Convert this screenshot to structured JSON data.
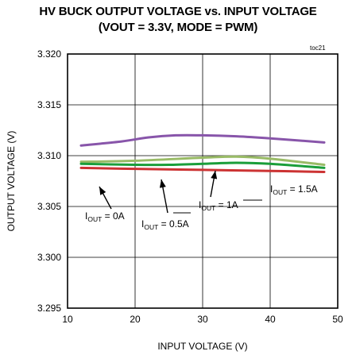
{
  "chart_data": {
    "type": "line",
    "title_line1": "HV BUCK OUTPUT VOLTAGE vs. INPUT VOLTAGE",
    "title_line2": "(VOUT = 3.3V, MODE = PWM)",
    "tag": "toc21",
    "xlabel": "INPUT VOLTAGE (V)",
    "ylabel": "OUTPUT  VOLTAGE (V)",
    "xlim": [
      10,
      50
    ],
    "ylim": [
      3.295,
      3.32
    ],
    "x_ticks": [
      10,
      20,
      30,
      40,
      50
    ],
    "y_ticks": [
      "3.295",
      "3.300",
      "3.305",
      "3.310",
      "3.315",
      "3.320"
    ],
    "grid": true,
    "series": [
      {
        "name": "IOUT = 0A",
        "color": "#cc3333",
        "x": [
          12,
          20,
          30,
          40,
          48
        ],
        "y": [
          3.3088,
          3.3087,
          3.3086,
          3.3085,
          3.3084
        ]
      },
      {
        "name": "IOUT = 0.5A",
        "color": "#99bb66",
        "x": [
          12,
          20,
          30,
          35,
          40,
          48
        ],
        "y": [
          3.3094,
          3.3095,
          3.3098,
          3.3099,
          3.3097,
          3.3091
        ]
      },
      {
        "name": "IOUT = 1A",
        "color": "#1a9e3a",
        "x": [
          12,
          20,
          25,
          30,
          35,
          40,
          48
        ],
        "y": [
          3.3092,
          3.3091,
          3.3091,
          3.3092,
          3.3093,
          3.3092,
          3.3088
        ]
      },
      {
        "name": "IOUT = 1.5A",
        "color": "#8855aa",
        "x": [
          12,
          18,
          22,
          26,
          30,
          35,
          40,
          48
        ],
        "y": [
          3.311,
          3.3114,
          3.3118,
          3.312,
          3.312,
          3.3119,
          3.3117,
          3.3113
        ]
      }
    ],
    "annotations": [
      {
        "main": "I",
        "sub": "OUT",
        "rest": " = 0A"
      },
      {
        "main": "I",
        "sub": "OUT",
        "rest": " = 0.5A"
      },
      {
        "main": "I",
        "sub": "OUT",
        "rest": " = 1A"
      },
      {
        "main": "I",
        "sub": "OUT",
        "rest": " = 1.5A"
      }
    ]
  }
}
